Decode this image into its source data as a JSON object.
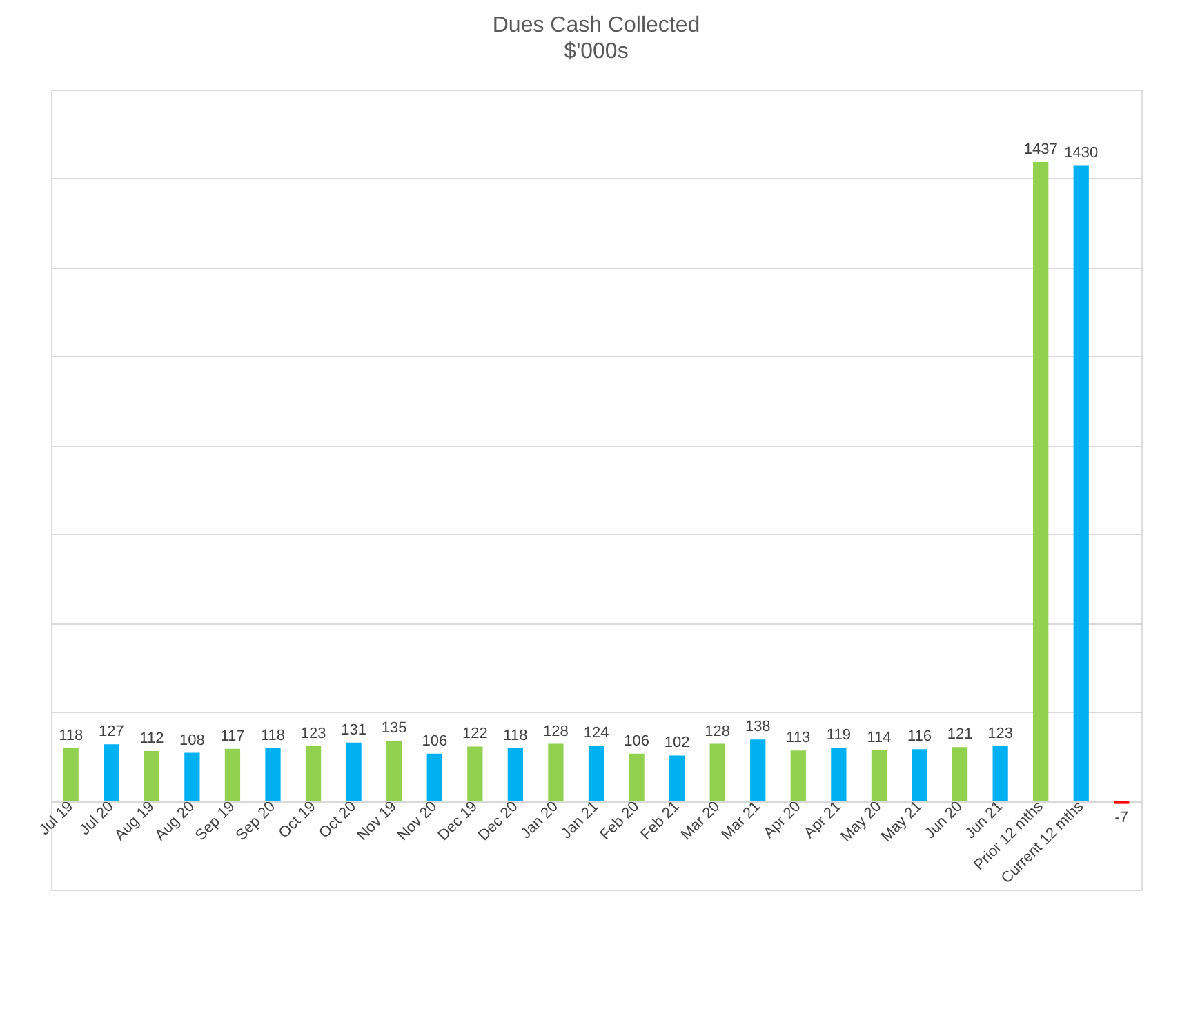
{
  "chart_data": {
    "type": "bar",
    "title": "Dues Cash Collected",
    "subtitle": "$'000s",
    "categories": [
      "Jul 19",
      "Jul 20",
      "Aug 19",
      "Aug 20",
      "Sep 19",
      "Sep 20",
      "Oct 19",
      "Oct 20",
      "Nov 19",
      "Nov 20",
      "Dec 19",
      "Dec 20",
      "Jan 20",
      "Jan 21",
      "Feb 20",
      "Feb 21",
      "Mar 20",
      "Mar 21",
      "Apr 20",
      "Apr 21",
      "May 20",
      "May 21",
      "Jun 20",
      "Jun 21",
      "Prior 12 mths",
      "Current 12 mths",
      null
    ],
    "values": [
      118,
      127,
      112,
      108,
      117,
      118,
      123,
      131,
      135,
      106,
      122,
      118,
      128,
      124,
      106,
      102,
      128,
      138,
      113,
      119,
      114,
      116,
      121,
      123,
      1437,
      1430,
      -7
    ],
    "colors": [
      "#92d050",
      "#00b0f0",
      "#92d050",
      "#00b0f0",
      "#92d050",
      "#00b0f0",
      "#92d050",
      "#00b0f0",
      "#92d050",
      "#00b0f0",
      "#92d050",
      "#00b0f0",
      "#92d050",
      "#00b0f0",
      "#92d050",
      "#00b0f0",
      "#92d050",
      "#00b0f0",
      "#92d050",
      "#00b0f0",
      "#92d050",
      "#00b0f0",
      "#92d050",
      "#00b0f0",
      "#92d050",
      "#00b0f0",
      "#ff0000"
    ],
    "ylim": [
      -200,
      1600
    ],
    "yticks": [
      {
        "value": -200,
        "label": null
      },
      {
        "value": 0,
        "label": null
      },
      {
        "value": 200,
        "label": null
      },
      {
        "value": 400,
        "label": null
      },
      {
        "value": 600,
        "label": null
      },
      {
        "value": 800,
        "label": null
      },
      {
        "value": 1000,
        "label": null
      },
      {
        "value": 1200,
        "label": null
      },
      {
        "value": 1400,
        "label": null
      },
      {
        "value": 1600,
        "label": null
      }
    ],
    "grid": "y",
    "data_labels": true,
    "tick_labels": "x"
  }
}
